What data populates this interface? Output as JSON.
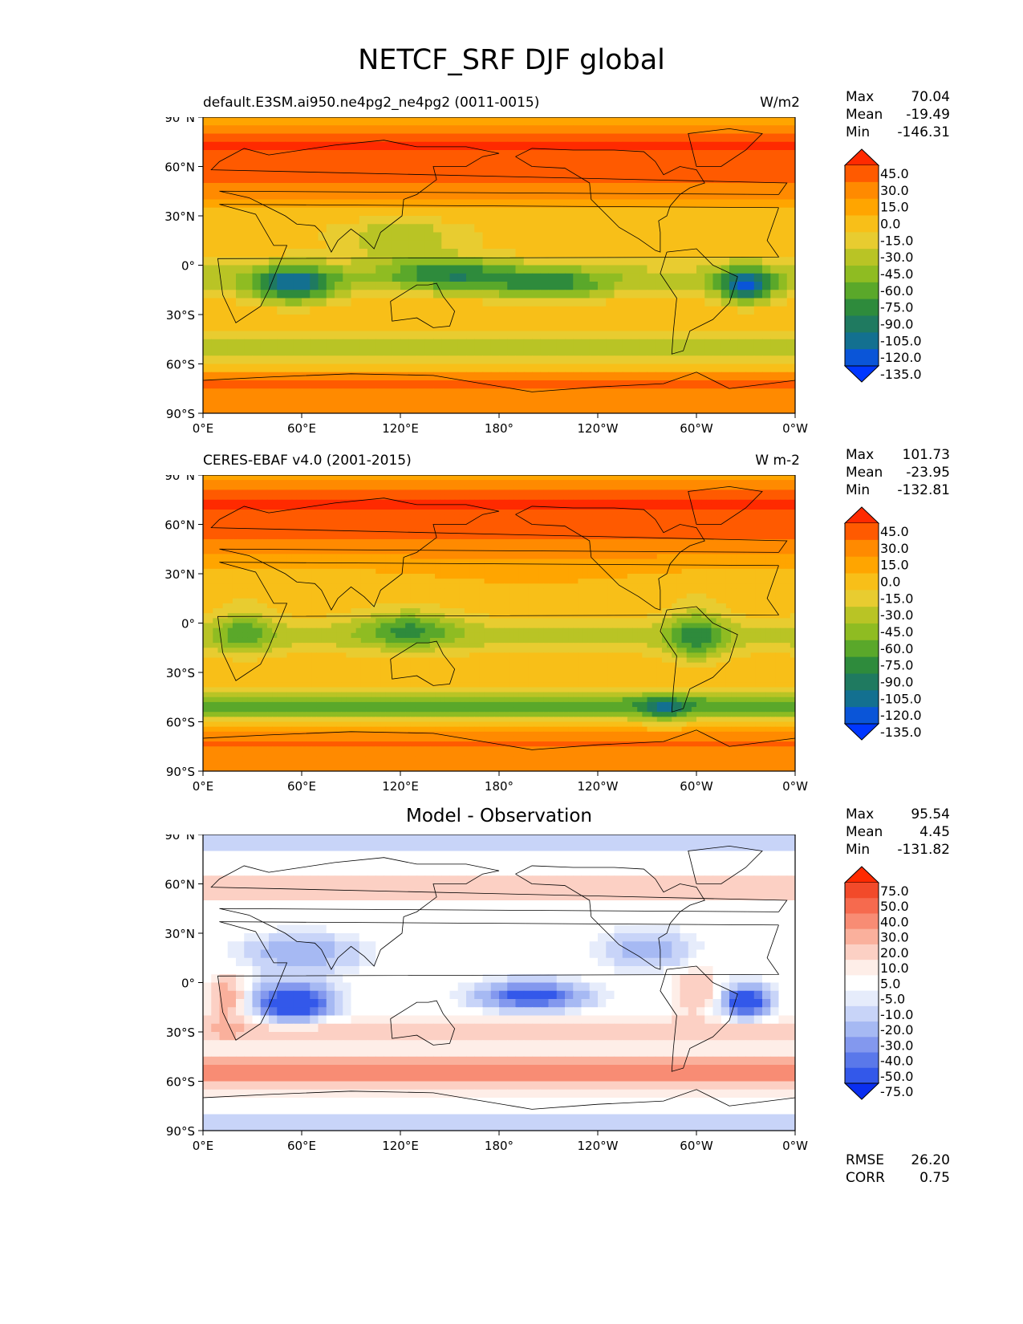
{
  "figure": {
    "title": "NETCF_SRF DJF global"
  },
  "axes": {
    "lat_ticks": [
      "90°N",
      "60°N",
      "30°N",
      "0°",
      "30°S",
      "60°S",
      "90°S"
    ],
    "lon_ticks": [
      "0°E",
      "60°E",
      "120°E",
      "180°",
      "120°W",
      "60°W",
      "0°W"
    ]
  },
  "chart_data": [
    {
      "type": "heatmap",
      "panel": "test",
      "title_left": "default.E3SM.ai950.ne4pg2_ne4pg2 (0011-0015)",
      "title_right": "W/m2",
      "stats": {
        "max": "70.04",
        "mean": "-19.49",
        "min": "-146.31"
      },
      "colorbar_levels": [
        "45.0",
        "30.0",
        "15.0",
        "0.0",
        "-15.0",
        "-30.0",
        "-45.0",
        "-60.0",
        "-75.0",
        "-90.0",
        "-105.0",
        "-120.0",
        "-135.0"
      ],
      "colorbar_colors": [
        "#ff2a00",
        "#ff5a00",
        "#ff8a00",
        "#ffa500",
        "#f8bf18",
        "#e8cc30",
        "#b9c425",
        "#8fbc22",
        "#5aa82a",
        "#2e8b3c",
        "#1f7a60",
        "#137090",
        "#0a55d8",
        "#0037ff"
      ],
      "xlim": [
        0,
        360
      ],
      "ylim": [
        -90,
        90
      ]
    },
    {
      "type": "heatmap",
      "panel": "reference",
      "title_left": "CERES-EBAF v4.0 (2001-2015)",
      "title_right": "W m-2",
      "stats": {
        "max": "101.73",
        "mean": "-23.95",
        "min": "-132.81"
      },
      "colorbar_levels": [
        "45.0",
        "30.0",
        "15.0",
        "0.0",
        "-15.0",
        "-30.0",
        "-45.0",
        "-60.0",
        "-75.0",
        "-90.0",
        "-105.0",
        "-120.0",
        "-135.0"
      ],
      "colorbar_colors": [
        "#ff2a00",
        "#ff5a00",
        "#ff8a00",
        "#ffa500",
        "#f8bf18",
        "#e8cc30",
        "#b9c425",
        "#8fbc22",
        "#5aa82a",
        "#2e8b3c",
        "#1f7a60",
        "#137090",
        "#0a55d8",
        "#0037ff"
      ],
      "xlim": [
        0,
        360
      ],
      "ylim": [
        -90,
        90
      ]
    },
    {
      "type": "heatmap",
      "panel": "difference",
      "title_center": "Model - Observation",
      "stats": {
        "max": "95.54",
        "mean": "4.45",
        "min": "-131.82"
      },
      "colorbar_levels": [
        "75.0",
        "50.0",
        "40.0",
        "30.0",
        "20.0",
        "10.0",
        "5.0",
        "-5.0",
        "-10.0",
        "-20.0",
        "-30.0",
        "-40.0",
        "-50.0",
        "-75.0"
      ],
      "colorbar_colors": [
        "#ff2a00",
        "#f24a2a",
        "#f66a4e",
        "#f88c74",
        "#fab09c",
        "#fcd0c4",
        "#feeee8",
        "#ffffff",
        "#e6ecfb",
        "#c8d4f8",
        "#a6b9f3",
        "#8398ee",
        "#5a78ea",
        "#3358ea",
        "#0a2ff0"
      ],
      "xlim": [
        0,
        360
      ],
      "ylim": [
        -90,
        90
      ]
    }
  ],
  "summary": {
    "rmse_label": "RMSE",
    "rmse": "26.20",
    "corr_label": "CORR",
    "corr": "0.75"
  },
  "labels": {
    "max": "Max",
    "mean": "Mean",
    "min": "Min"
  }
}
